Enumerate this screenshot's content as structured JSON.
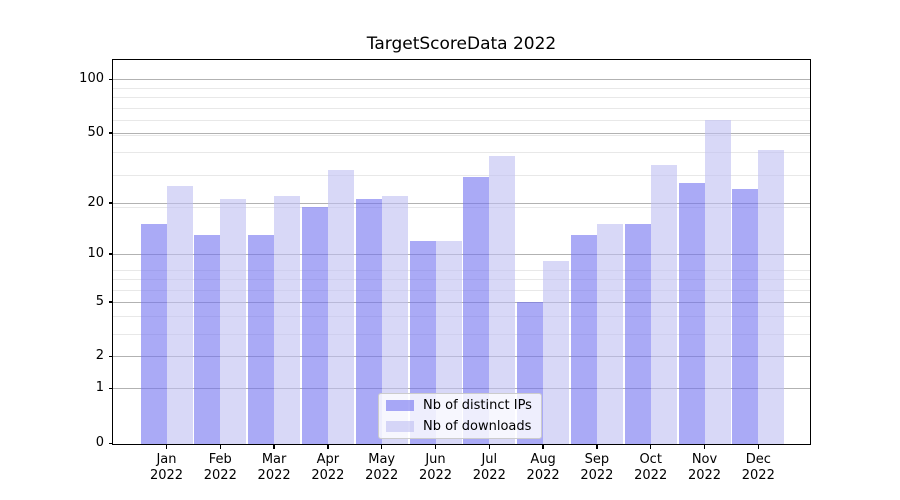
{
  "chart_data": {
    "type": "bar",
    "title": "TargetScoreData 2022",
    "xlabel": "",
    "ylabel": "",
    "yscale": "log10(value+1)",
    "ylim": [
      0,
      128
    ],
    "grid": true,
    "legend_position": "lower center",
    "yticks": [
      0,
      1,
      2,
      5,
      10,
      20,
      50,
      100
    ],
    "categories": [
      "Jan\n2022",
      "Feb\n2022",
      "Mar\n2022",
      "Apr\n2022",
      "May\n2022",
      "Jun\n2022",
      "Jul\n2022",
      "Aug\n2022",
      "Sep\n2022",
      "Oct\n2022",
      "Nov\n2022",
      "Dec\n2022"
    ],
    "series": [
      {
        "name": "Nb of distinct IPs",
        "color": "#aaaaf4",
        "color_rgba": "rgba(113,113,240,0.6)",
        "values": [
          15,
          13,
          13,
          19,
          21,
          12,
          28,
          5,
          13,
          15,
          26,
          24
        ]
      },
      {
        "name": "Nb of downloads",
        "color": "#d9d9f8",
        "color_rgba": "rgba(190,190,242,0.6)",
        "values": [
          25,
          21,
          22,
          31,
          22,
          12,
          37,
          9,
          15,
          33,
          59,
          40
        ]
      }
    ],
    "axis_color": "#000000",
    "major_grid_color": "#b2b2b2",
    "minor_grid_color": "#e8e8e8"
  }
}
